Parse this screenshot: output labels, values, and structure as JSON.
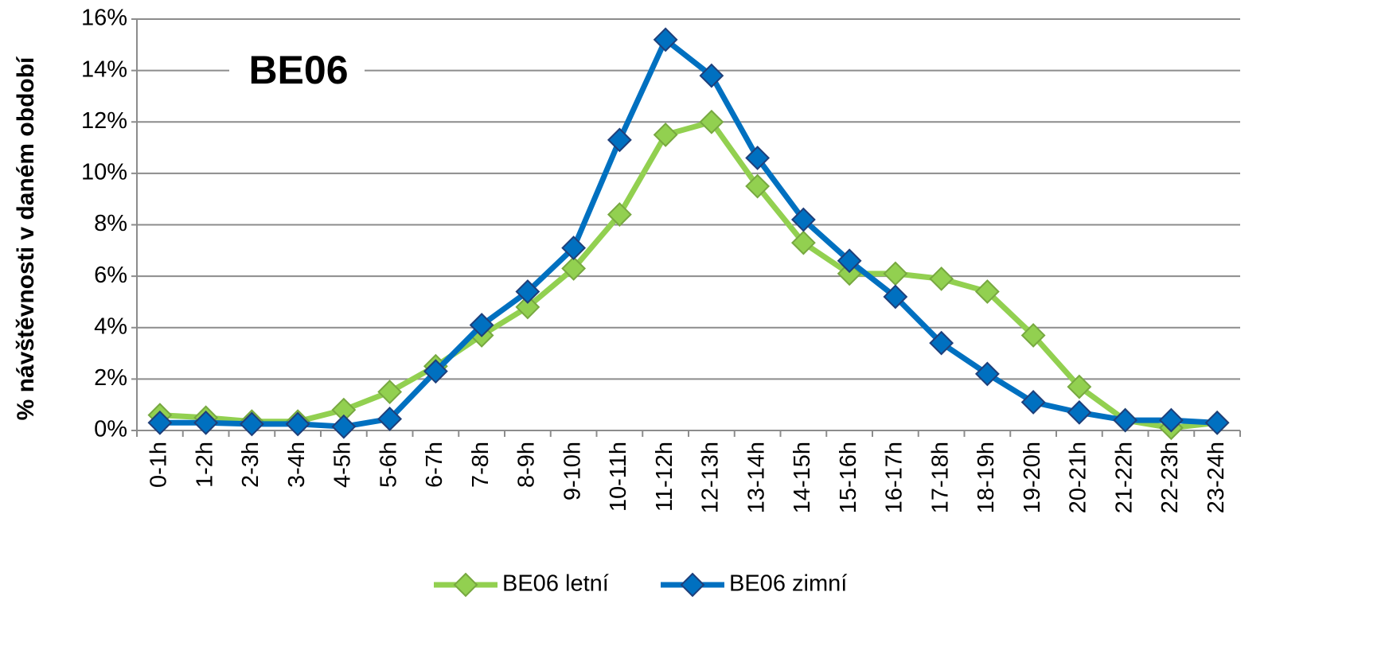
{
  "chart_data": {
    "type": "line",
    "annotation": "BE06",
    "y_label": "% návštěvnosti v daném období",
    "categories": [
      "0-1h",
      "1-2h",
      "2-3h",
      "3-4h",
      "4-5h",
      "5-6h",
      "6-7h",
      "7-8h",
      "8-9h",
      "9-10h",
      "10-11h",
      "11-12h",
      "12-13h",
      "13-14h",
      "14-15h",
      "15-16h",
      "16-17h",
      "17-18h",
      "18-19h",
      "19-20h",
      "20-21h",
      "21-22h",
      "22-23h",
      "23-24h"
    ],
    "series": [
      {
        "name": "BE06 letní",
        "color": "#92d050",
        "edge": "#77a840",
        "values": [
          0.6,
          0.5,
          0.35,
          0.35,
          0.8,
          1.5,
          2.5,
          3.7,
          4.8,
          6.3,
          8.4,
          11.5,
          12.0,
          9.5,
          7.3,
          6.1,
          6.1,
          5.9,
          5.4,
          3.7,
          1.7,
          0.4,
          0.1,
          0.3
        ]
      },
      {
        "name": "BE06 zimní",
        "color": "#0070c0",
        "edge": "#1f3f7a",
        "values": [
          0.3,
          0.3,
          0.25,
          0.25,
          0.15,
          0.45,
          2.3,
          4.1,
          5.4,
          7.1,
          11.3,
          15.2,
          13.8,
          10.6,
          8.2,
          6.6,
          5.2,
          3.4,
          2.2,
          1.1,
          0.7,
          0.4,
          0.4,
          0.3
        ]
      }
    ],
    "ylim": [
      0,
      16
    ],
    "yticks": [
      {
        "value": 0,
        "label": "0%"
      },
      {
        "value": 2,
        "label": "2%"
      },
      {
        "value": 4,
        "label": "4%"
      },
      {
        "value": 6,
        "label": "6%"
      },
      {
        "value": 8,
        "label": "8%"
      },
      {
        "value": 10,
        "label": "10%"
      },
      {
        "value": 12,
        "label": "12%"
      },
      {
        "value": 14,
        "label": "14%"
      },
      {
        "value": 16,
        "label": "16%"
      }
    ],
    "grid": true,
    "legend": "bottom"
  }
}
